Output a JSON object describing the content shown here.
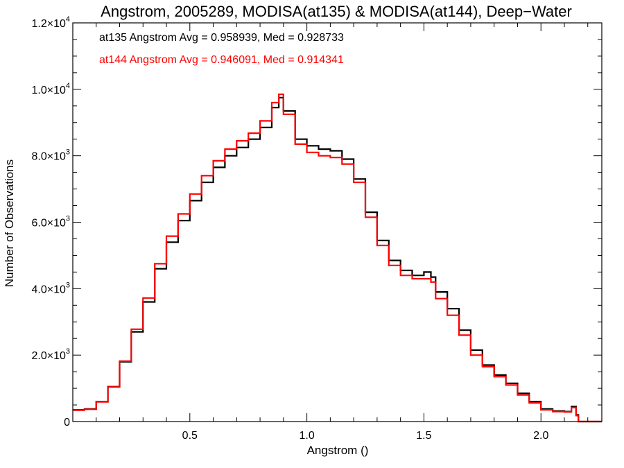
{
  "chart_data": {
    "type": "line",
    "title": "Angstrom, 2005289, MODISA(at135) & MODISA(at144), Deep−Water",
    "xlabel": "Angstrom ()",
    "ylabel": "Number of Observations",
    "xlim": [
      0.0,
      2.26
    ],
    "ylim": [
      0,
      12000
    ],
    "x_ticks": [
      {
        "value": 0.5,
        "label": "0.5"
      },
      {
        "value": 1.0,
        "label": "1.0"
      },
      {
        "value": 1.5,
        "label": "1.5"
      },
      {
        "value": 2.0,
        "label": "2.0"
      }
    ],
    "y_ticks": [
      {
        "value": 0,
        "mant": "0",
        "exp": ""
      },
      {
        "value": 2000,
        "mant": "2.0×10",
        "exp": "3"
      },
      {
        "value": 4000,
        "mant": "4.0×10",
        "exp": "3"
      },
      {
        "value": 6000,
        "mant": "6.0×10",
        "exp": "3"
      },
      {
        "value": 8000,
        "mant": "8.0×10",
        "exp": "3"
      },
      {
        "value": 10000,
        "mant": "1.0×10",
        "exp": "4"
      },
      {
        "value": 12000,
        "mant": "1.2×10",
        "exp": "4"
      }
    ],
    "annotations": [
      {
        "text": "at135 Angstrom Avg = 0.958939, Med = 0.928733",
        "color": "#000000"
      },
      {
        "text": "at144 Angstrom Avg = 0.946091, Med = 0.914341",
        "color": "#ff0000"
      }
    ],
    "grid": false,
    "step_style": "histogram",
    "series": [
      {
        "color": "#000000",
        "x": [
          0.0,
          0.05,
          0.1,
          0.15,
          0.2,
          0.25,
          0.3,
          0.35,
          0.4,
          0.45,
          0.5,
          0.55,
          0.6,
          0.65,
          0.7,
          0.75,
          0.8,
          0.85,
          0.88,
          0.9,
          0.95,
          1.0,
          1.05,
          1.1,
          1.15,
          1.2,
          1.25,
          1.3,
          1.35,
          1.4,
          1.45,
          1.5,
          1.53,
          1.55,
          1.6,
          1.65,
          1.7,
          1.75,
          1.8,
          1.85,
          1.9,
          1.95,
          2.0,
          2.05,
          2.1,
          2.13,
          2.15,
          2.16,
          2.26
        ],
        "values": [
          350,
          380,
          600,
          1050,
          1800,
          2700,
          3600,
          4600,
          5400,
          6050,
          6650,
          7200,
          7650,
          8000,
          8250,
          8500,
          8850,
          9450,
          9750,
          9350,
          8500,
          8300,
          8200,
          8150,
          7900,
          7300,
          6300,
          5450,
          4850,
          4550,
          4400,
          4500,
          4350,
          3900,
          3400,
          2750,
          2150,
          1700,
          1400,
          1150,
          850,
          600,
          380,
          320,
          300,
          450,
          200,
          0,
          0
        ]
      },
      {
        "color": "#ff0000",
        "x": [
          0.0,
          0.05,
          0.1,
          0.15,
          0.2,
          0.25,
          0.3,
          0.35,
          0.4,
          0.45,
          0.5,
          0.55,
          0.6,
          0.65,
          0.7,
          0.75,
          0.8,
          0.85,
          0.88,
          0.9,
          0.95,
          1.0,
          1.05,
          1.1,
          1.15,
          1.2,
          1.25,
          1.3,
          1.35,
          1.4,
          1.45,
          1.5,
          1.53,
          1.55,
          1.6,
          1.65,
          1.7,
          1.75,
          1.8,
          1.85,
          1.9,
          1.95,
          2.0,
          2.05,
          2.1,
          2.13,
          2.15,
          2.16,
          2.26
        ],
        "values": [
          340,
          370,
          590,
          1040,
          1820,
          2780,
          3720,
          4750,
          5580,
          6250,
          6850,
          7400,
          7850,
          8200,
          8450,
          8680,
          9050,
          9600,
          9850,
          9250,
          8350,
          8100,
          8000,
          7950,
          7750,
          7200,
          6150,
          5300,
          4700,
          4400,
          4300,
          4300,
          4200,
          3700,
          3200,
          2600,
          2000,
          1650,
          1350,
          1100,
          800,
          560,
          350,
          300,
          290,
          420,
          180,
          0,
          0
        ]
      }
    ]
  }
}
